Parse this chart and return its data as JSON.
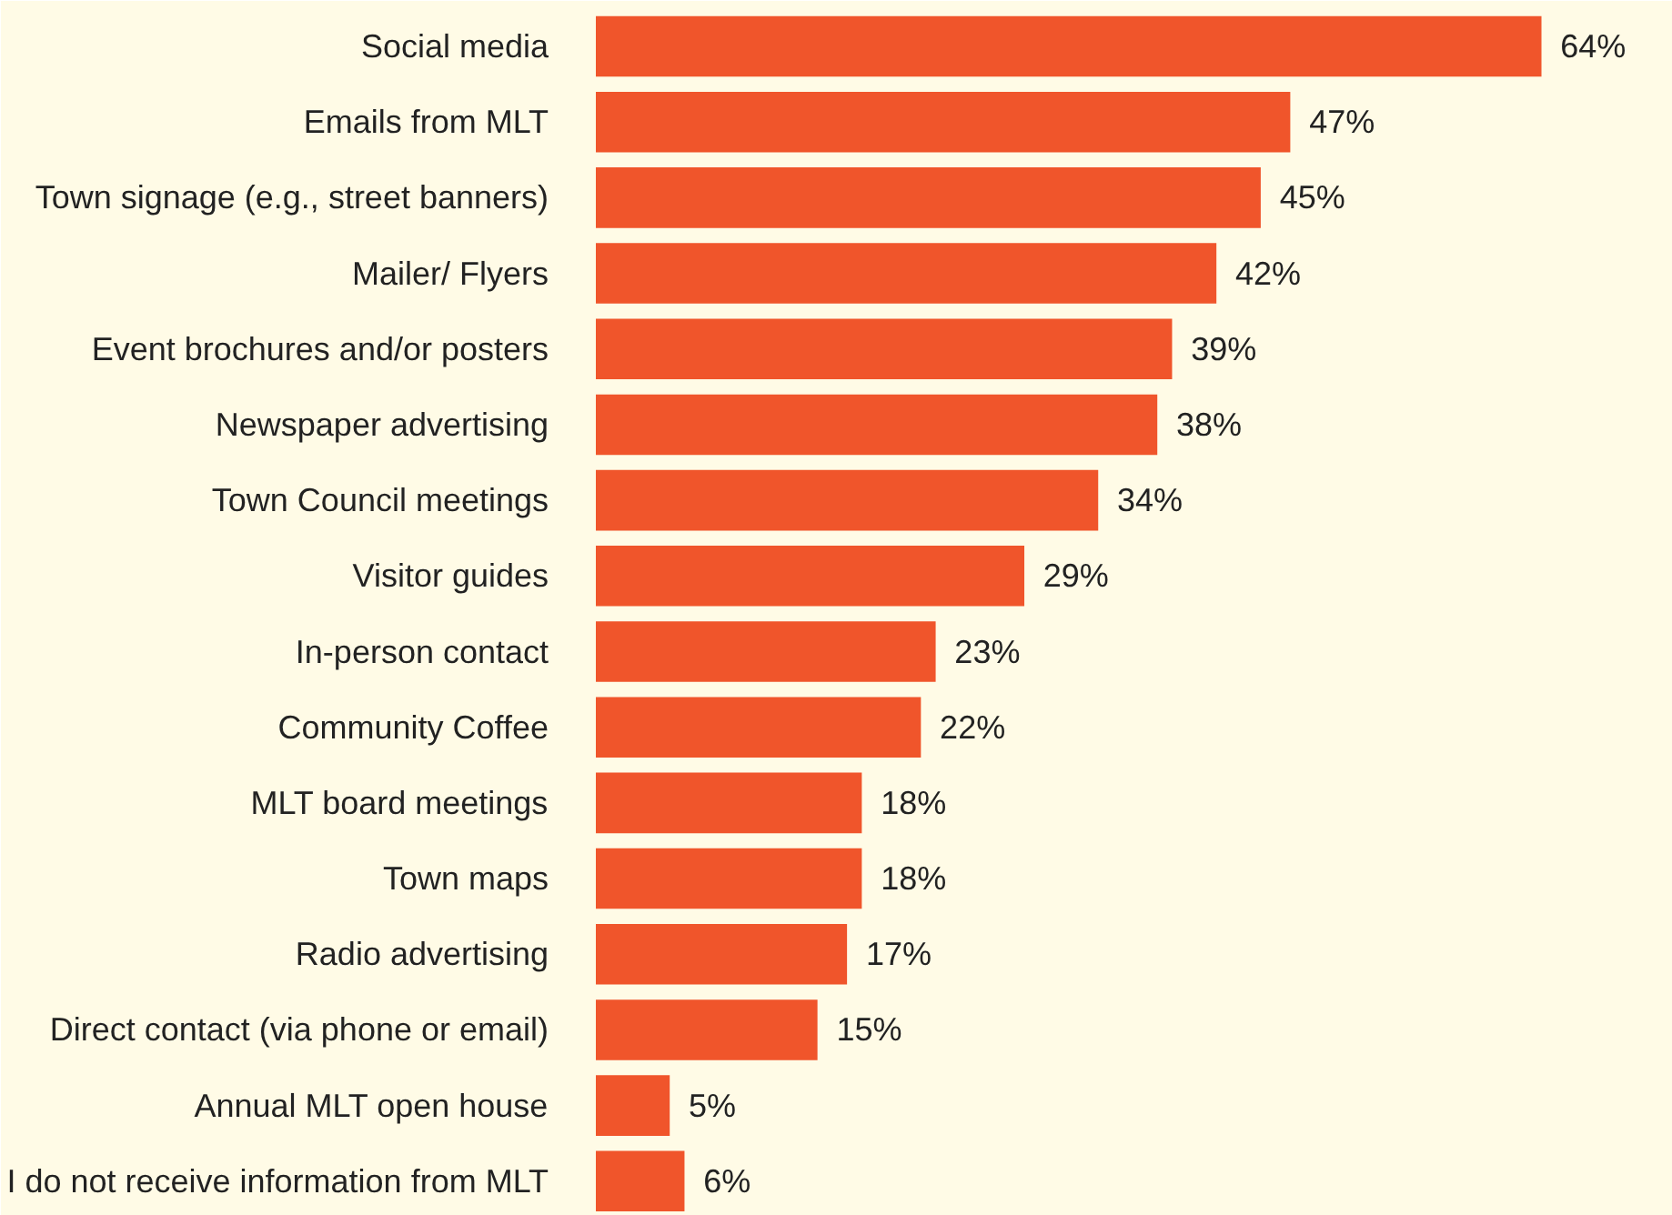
{
  "chart_data": {
    "type": "bar",
    "orientation": "horizontal",
    "categories": [
      "Social media",
      "Emails from MLT",
      "Town signage (e.g., street banners)",
      "Mailer/ Flyers",
      "Event brochures and/or posters",
      "Newspaper advertising",
      "Town Council meetings",
      "Visitor guides",
      "In-person contact",
      "Community Coffee",
      "MLT board meetings",
      "Town maps",
      "Radio advertising",
      "Direct contact (via phone or email)",
      "Annual MLT open house",
      "I do not receive information from MLT"
    ],
    "values": [
      64,
      47,
      45,
      42,
      39,
      38,
      34,
      29,
      23,
      22,
      18,
      18,
      17,
      15,
      5,
      6
    ],
    "value_labels": [
      "64%",
      "47%",
      "45%",
      "42%",
      "39%",
      "38%",
      "34%",
      "29%",
      "23%",
      "22%",
      "18%",
      "18%",
      "17%",
      "15%",
      "5%",
      "6%"
    ],
    "color": "#f0552b",
    "grid": false
  }
}
